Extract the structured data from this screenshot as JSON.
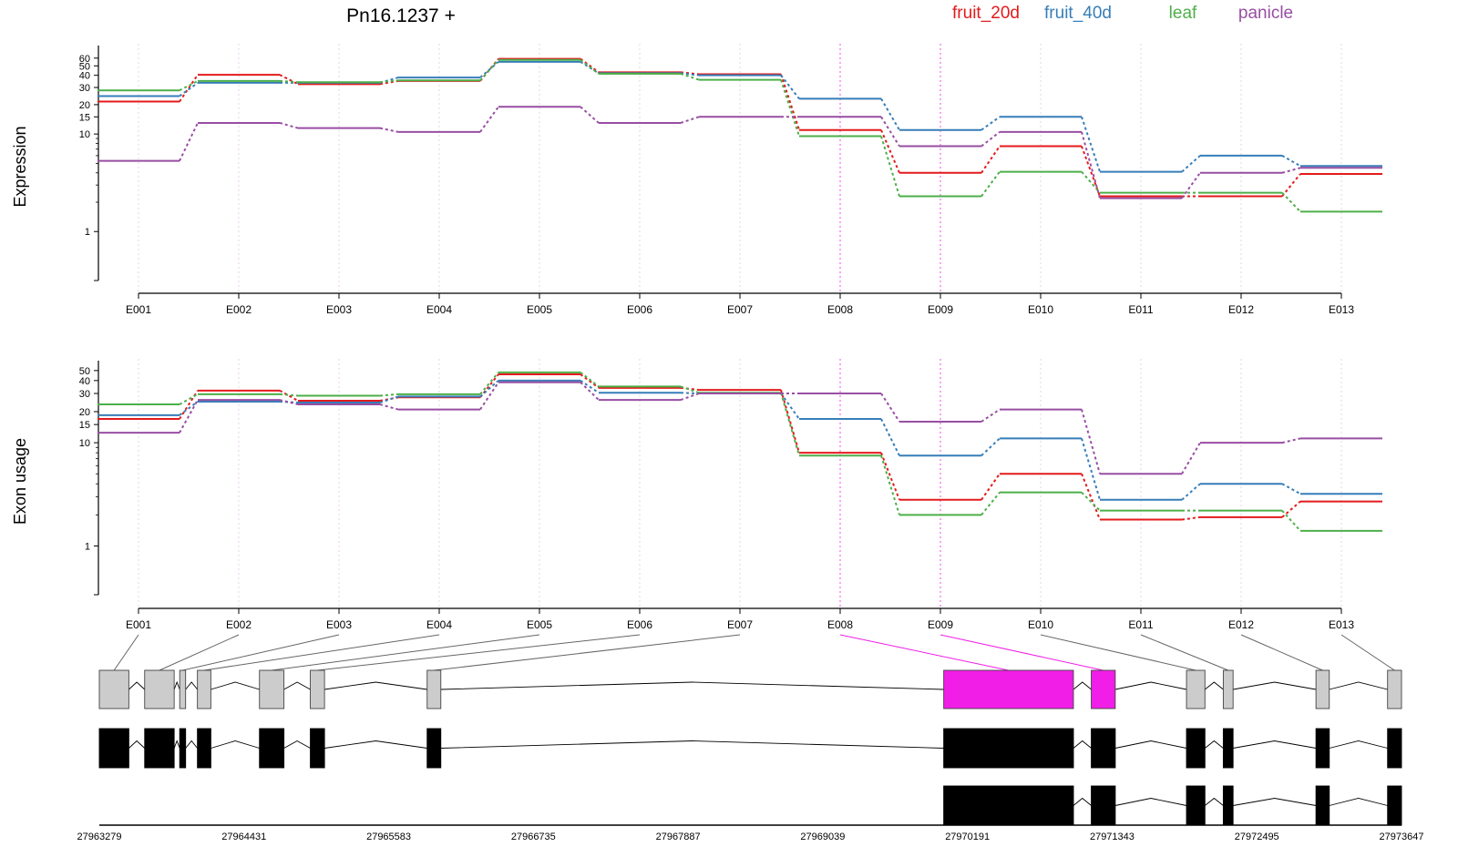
{
  "title": "Pn16.1237 +",
  "legend": [
    {
      "name": "fruit_20d",
      "color": "#e41a1c"
    },
    {
      "name": "fruit_40d",
      "color": "#377eb8"
    },
    {
      "name": "leaf",
      "color": "#4daf4a"
    },
    {
      "name": "panicle",
      "color": "#984ea3"
    }
  ],
  "highlight_color": "#f01ee6",
  "chart_data": [
    {
      "type": "line",
      "ylabel": "Expression",
      "y_scale": "log",
      "y_ticks": [
        1,
        10,
        15,
        20,
        30,
        40,
        50,
        60
      ],
      "categories": [
        "E001",
        "E002",
        "E003",
        "E004",
        "E005",
        "E006",
        "E007",
        "E008",
        "E009",
        "E010",
        "E011",
        "E012",
        "E013"
      ],
      "highlighted_categories": [
        "E008",
        "E009"
      ],
      "series": [
        {
          "name": "fruit_20d",
          "values": [
            21.5,
            40.5,
            32.5,
            35,
            59,
            43,
            41,
            11,
            4,
            7.5,
            2.3,
            2.3,
            3.9
          ]
        },
        {
          "name": "fruit_40d",
          "values": [
            24.5,
            33.5,
            33.5,
            38,
            55,
            42,
            40,
            23,
            11,
            15,
            4.1,
            6,
            4.7
          ]
        },
        {
          "name": "leaf",
          "values": [
            28,
            35,
            34,
            35.5,
            57.5,
            41.5,
            36,
            9.5,
            2.3,
            4.1,
            2.5,
            2.5,
            1.6
          ]
        },
        {
          "name": "panicle",
          "values": [
            5.3,
            13,
            11.5,
            10.5,
            19,
            13,
            15,
            15,
            7.5,
            10.5,
            2.2,
            4,
            4.5
          ]
        }
      ]
    },
    {
      "type": "line",
      "ylabel": "Exon usage",
      "y_scale": "log",
      "y_ticks": [
        1,
        10,
        15,
        20,
        30,
        40,
        50
      ],
      "categories": [
        "E001",
        "E002",
        "E003",
        "E004",
        "E005",
        "E006",
        "E007",
        "E008",
        "E009",
        "E010",
        "E011",
        "E012",
        "E013"
      ],
      "highlighted_categories": [
        "E008",
        "E009"
      ],
      "series": [
        {
          "name": "fruit_20d",
          "values": [
            17,
            32,
            25.5,
            27.5,
            46,
            34,
            32.5,
            8,
            2.8,
            5,
            1.8,
            1.9,
            2.7
          ]
        },
        {
          "name": "fruit_40d",
          "values": [
            18.5,
            25,
            24.5,
            28,
            40,
            30.5,
            30,
            17,
            7.5,
            11,
            2.8,
            4,
            3.2
          ]
        },
        {
          "name": "leaf",
          "values": [
            23.5,
            29.5,
            28.5,
            29.5,
            48,
            35,
            30.5,
            7.5,
            2,
            3.3,
            2.2,
            2.2,
            1.4
          ]
        },
        {
          "name": "panicle",
          "values": [
            12.5,
            26,
            23.5,
            21,
            38.5,
            26,
            30,
            30,
            16,
            21,
            5,
            10,
            11
          ]
        }
      ]
    },
    {
      "type": "gene_model",
      "genomic_axis_ticks": [
        "27963279",
        "27964431",
        "27965583",
        "27966735",
        "27967887",
        "27969039",
        "27970191",
        "27971343",
        "27972495",
        "27973647"
      ],
      "exon_labels": [
        "E001",
        "E002",
        "E003",
        "E004",
        "E005",
        "E006",
        "E007",
        "E008",
        "E009",
        "E010",
        "E011",
        "E012",
        "E013"
      ],
      "highlighted_exons": [
        "E008",
        "E009"
      ],
      "exon_coordinates": [
        [
          27963279,
          27963514
        ],
        [
          27963640,
          27963875
        ],
        [
          27963919,
          27963966
        ],
        [
          27964060,
          27964167
        ],
        [
          27964554,
          27964749
        ],
        [
          27964959,
          27965072
        ],
        [
          27965889,
          27965998
        ],
        [
          27970002,
          27971035
        ],
        [
          27971177,
          27971368
        ],
        [
          27971935,
          27972082
        ],
        [
          27972228,
          27972306
        ],
        [
          27972966,
          27973072
        ],
        [
          27973536,
          27973647
        ]
      ],
      "transcripts": [
        {
          "exons": [
            0,
            1,
            2,
            3,
            4,
            5,
            6,
            7,
            8,
            9,
            10,
            11,
            12
          ]
        },
        {
          "exons": [
            7,
            8,
            9,
            10,
            11,
            12
          ]
        }
      ]
    }
  ]
}
